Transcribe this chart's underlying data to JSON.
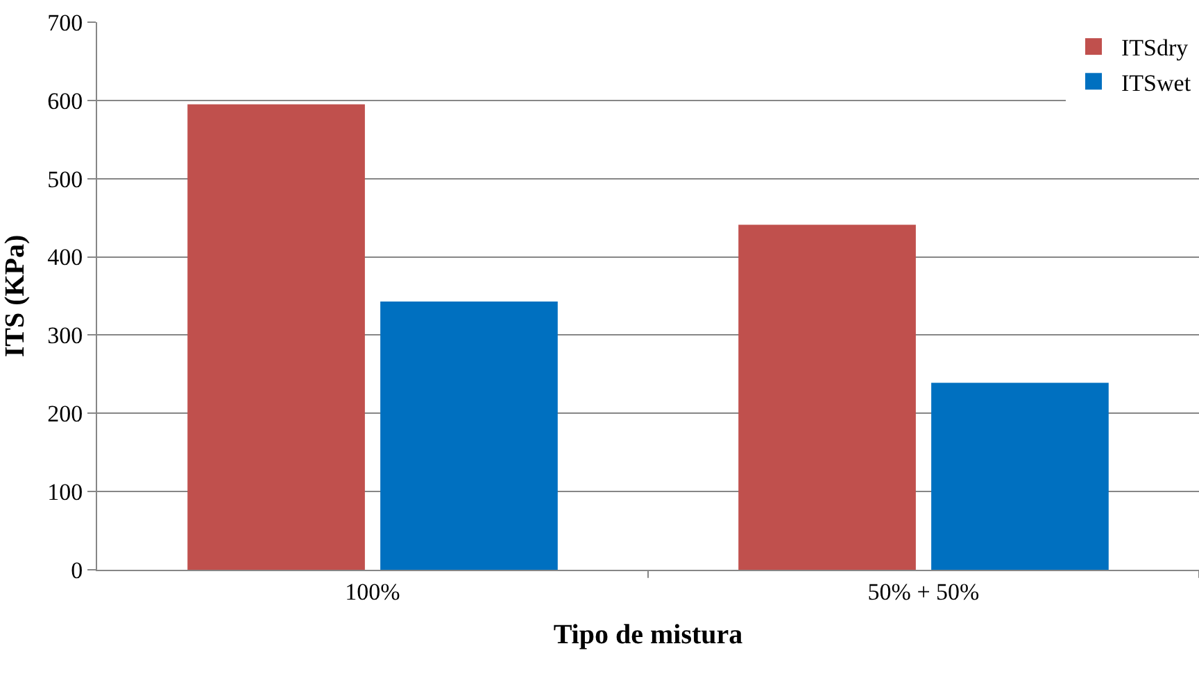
{
  "chart_data": {
    "type": "bar",
    "xlabel": "Tipo de mistura",
    "ylabel": "ITS (KPa)",
    "categories": [
      "100%",
      "50% + 50%"
    ],
    "series": [
      {
        "name": "ITSdry",
        "color": "#c0504d",
        "values": [
          595,
          441
        ]
      },
      {
        "name": "ITSwet",
        "color": "#0070c0",
        "values": [
          343,
          239
        ]
      }
    ],
    "ylim": [
      0,
      700
    ],
    "yticks": [
      0,
      100,
      200,
      300,
      400,
      500,
      600,
      700
    ],
    "grid": "y",
    "legend": "top right"
  }
}
